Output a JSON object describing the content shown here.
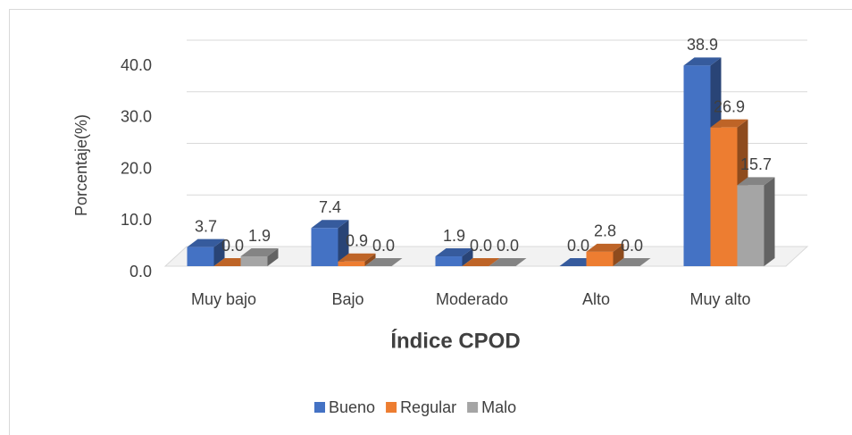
{
  "chart_data": {
    "type": "bar3d",
    "x_label": "Índice CPOD",
    "y_label": "Porcentaje(%)",
    "categories": [
      "Muy bajo",
      "Bajo",
      "Moderado",
      "Alto",
      "Muy alto"
    ],
    "series": [
      {
        "name": "Bueno",
        "color": "#4472c4",
        "values": [
          3.7,
          7.4,
          1.9,
          0.0,
          38.9
        ],
        "value_labels": [
          "3.7",
          "7.4",
          "1.9",
          "0.0",
          "38.9"
        ]
      },
      {
        "name": "Regular",
        "color": "#ed7d31",
        "values": [
          0.0,
          0.9,
          0.0,
          2.8,
          26.9
        ],
        "value_labels": [
          "0.0",
          "0.9",
          "0.0",
          "2.8",
          "26.9"
        ]
      },
      {
        "name": "Malo",
        "color": "#a5a5a5",
        "values": [
          1.9,
          0.0,
          0.0,
          0.0,
          15.7
        ],
        "value_labels": [
          "1.9",
          "0.0",
          "0.0",
          "0.0",
          "15.7"
        ]
      }
    ],
    "ylim": [
      0,
      40
    ],
    "yticks": [
      {
        "value": 0,
        "label": "0.0"
      },
      {
        "value": 10,
        "label": "10.0"
      },
      {
        "value": 20,
        "label": "20.0"
      },
      {
        "value": 30,
        "label": "30.0"
      },
      {
        "value": 40,
        "label": "40.0"
      }
    ],
    "grid": true,
    "legend": "bottom"
  }
}
